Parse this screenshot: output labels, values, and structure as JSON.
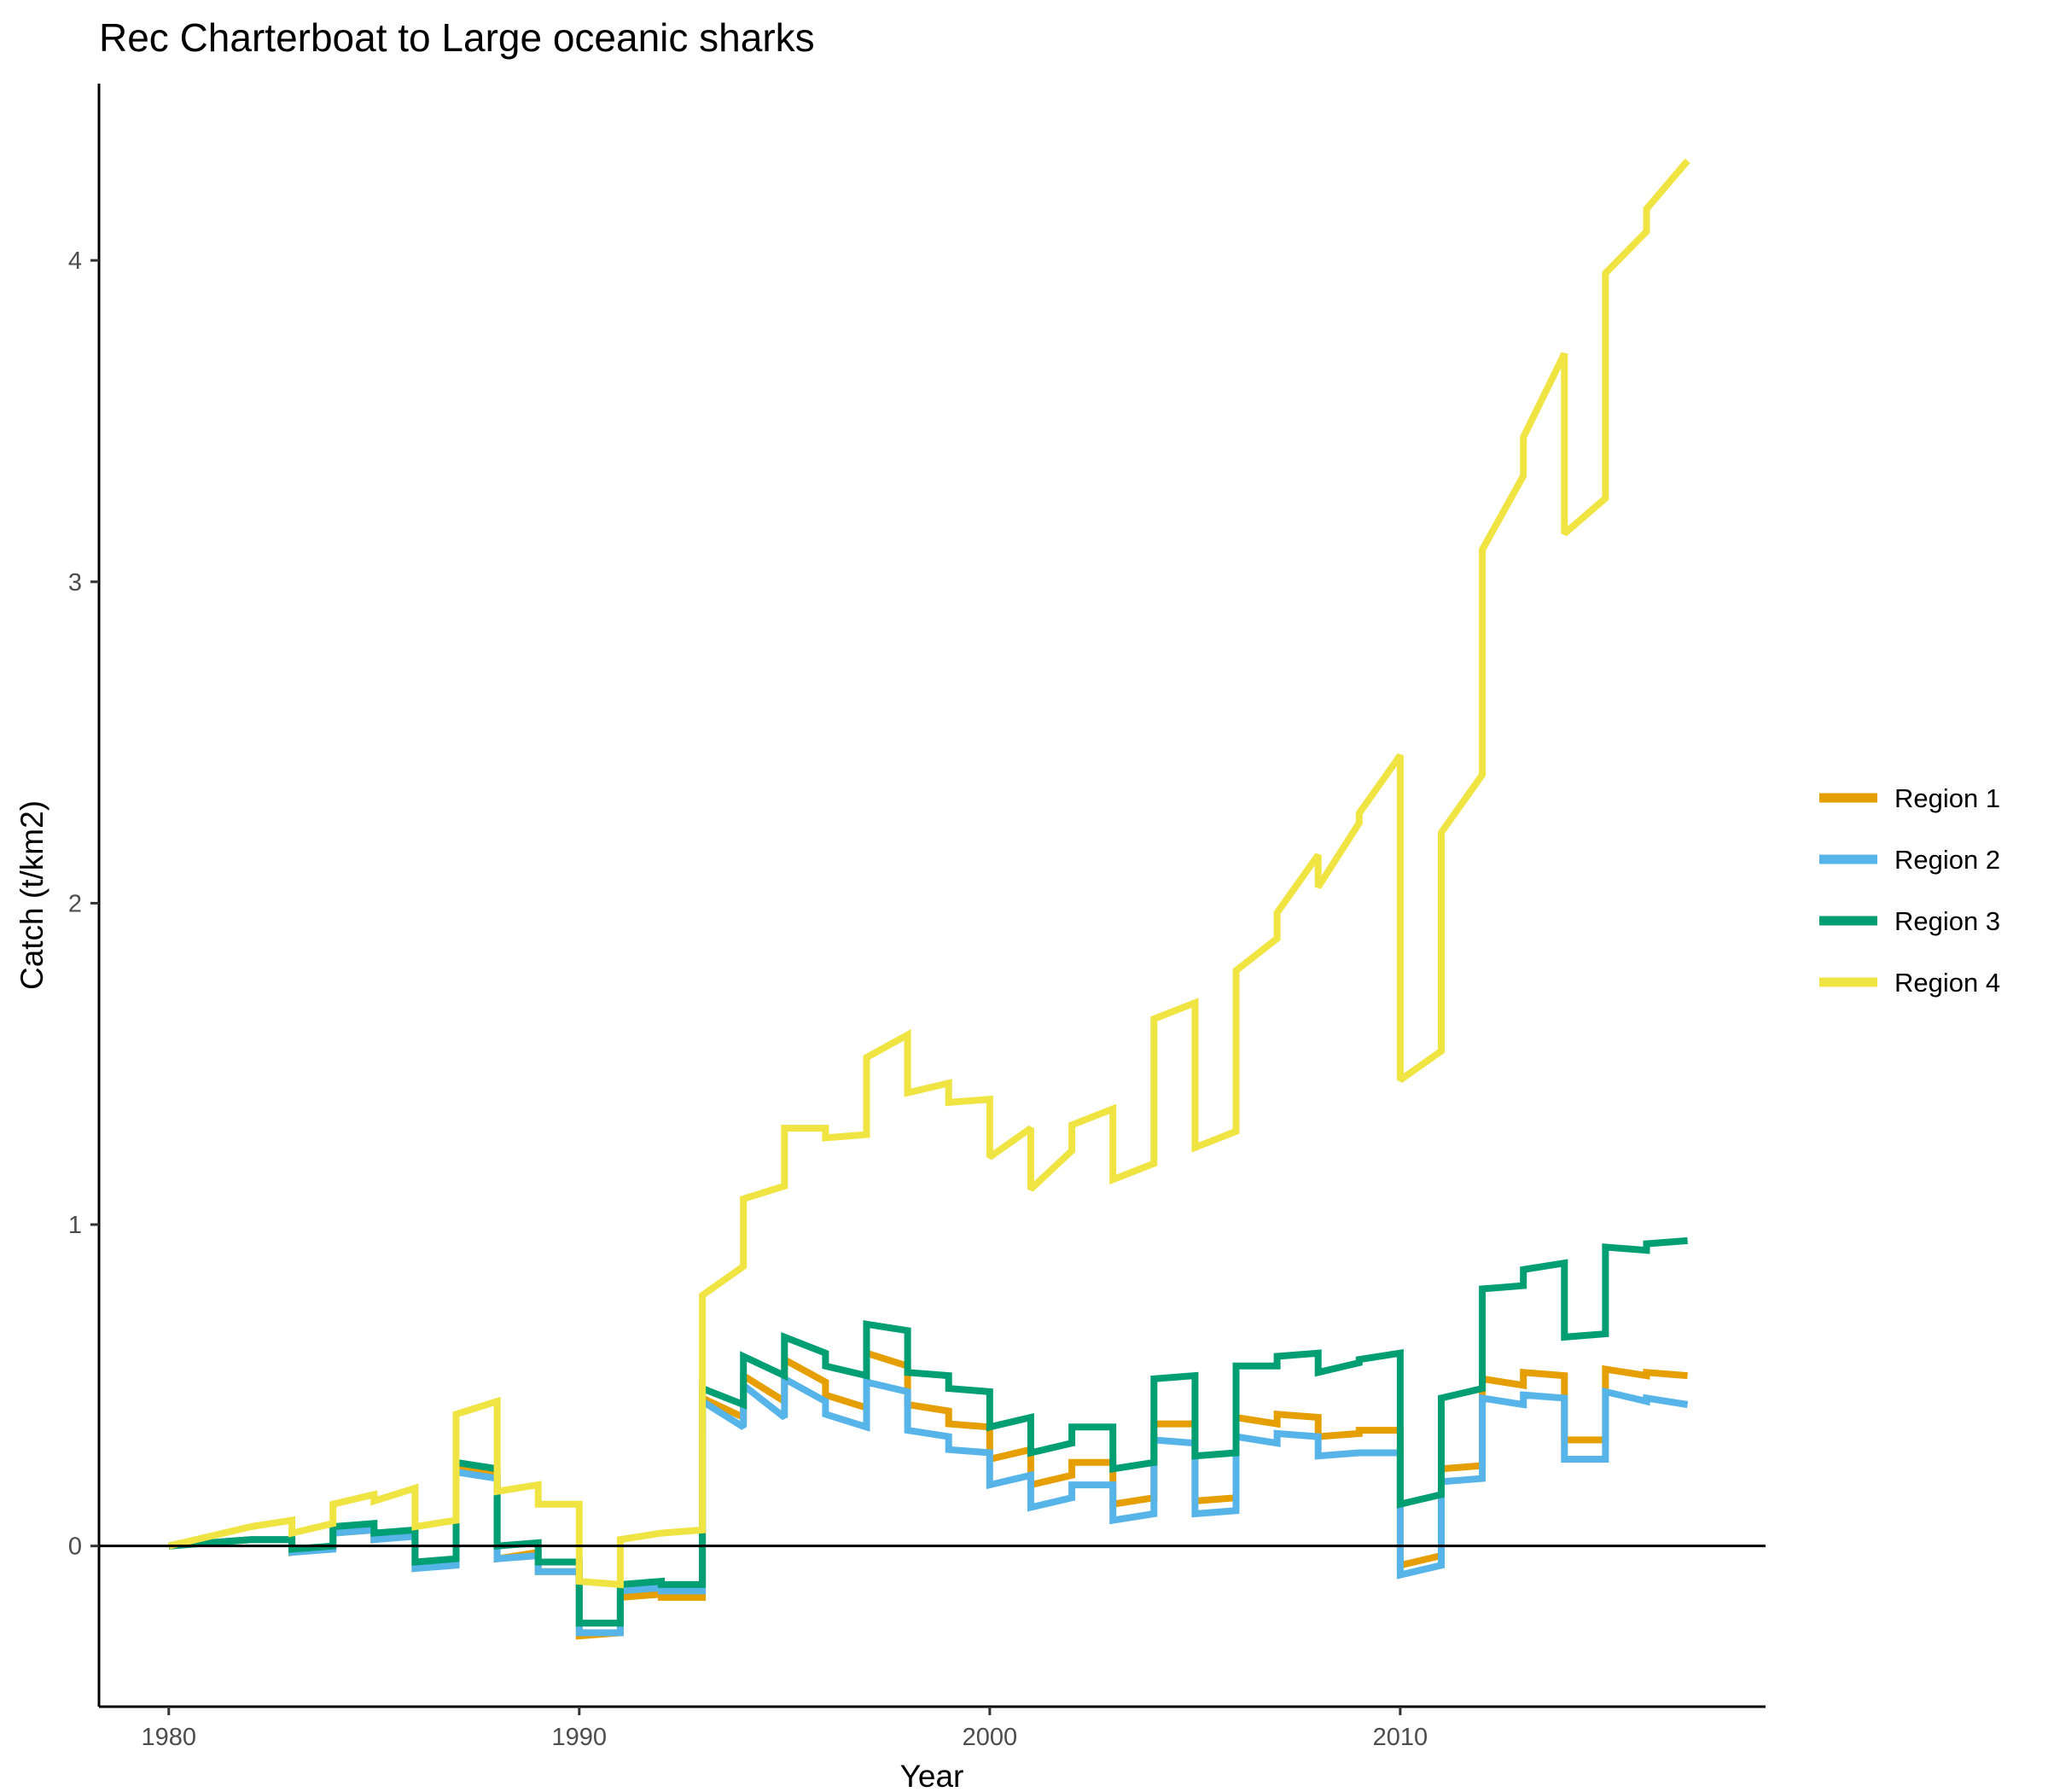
{
  "chart_data": {
    "type": "line",
    "title": "Rec Charterboat to Large oceanic sharks",
    "xlabel": "Year",
    "ylabel": "Catch (t/km2)",
    "xlim": [
      1978.3,
      2018.9
    ],
    "ylim": [
      -0.5,
      4.55
    ],
    "x_ticks": [
      1980,
      1990,
      2000,
      2010
    ],
    "y_ticks": [
      0,
      1,
      2,
      3,
      4
    ],
    "zero_line": true,
    "grid": false,
    "legend_position": "right",
    "series": [
      {
        "name": "Region 1",
        "color": "#E69F00",
        "points": [
          [
            1980,
            0
          ],
          [
            1981,
            0.01
          ],
          [
            1982,
            0.02
          ],
          [
            1983,
            0.02
          ],
          [
            1983,
            -0.02
          ],
          [
            1984,
            0
          ],
          [
            1984,
            0.04
          ],
          [
            1985,
            0.05
          ],
          [
            1985,
            0.02
          ],
          [
            1986,
            0.04
          ],
          [
            1986,
            -0.07
          ],
          [
            1987,
            -0.05
          ],
          [
            1987,
            0.24
          ],
          [
            1988,
            0.22
          ],
          [
            1988,
            -0.04
          ],
          [
            1989,
            -0.02
          ],
          [
            1989,
            -0.08
          ],
          [
            1990,
            -0.08
          ],
          [
            1990,
            -0.28
          ],
          [
            1991,
            -0.27
          ],
          [
            1991,
            -0.16
          ],
          [
            1992,
            -0.15
          ],
          [
            1992,
            -0.16
          ],
          [
            1993,
            -0.16
          ],
          [
            1993,
            0.46
          ],
          [
            1994,
            0.4
          ],
          [
            1994,
            0.53
          ],
          [
            1995,
            0.45
          ],
          [
            1995,
            0.58
          ],
          [
            1996,
            0.51
          ],
          [
            1996,
            0.47
          ],
          [
            1997,
            0.43
          ],
          [
            1997,
            0.6
          ],
          [
            1998,
            0.56
          ],
          [
            1998,
            0.44
          ],
          [
            1999,
            0.42
          ],
          [
            1999,
            0.38
          ],
          [
            2000,
            0.37
          ],
          [
            2000,
            0.27
          ],
          [
            2001,
            0.3
          ],
          [
            2001,
            0.19
          ],
          [
            2002,
            0.22
          ],
          [
            2002,
            0.26
          ],
          [
            2003,
            0.26
          ],
          [
            2003,
            0.13
          ],
          [
            2004,
            0.15
          ],
          [
            2004,
            0.38
          ],
          [
            2005,
            0.38
          ],
          [
            2005,
            0.14
          ],
          [
            2006,
            0.15
          ],
          [
            2006,
            0.4
          ],
          [
            2007,
            0.38
          ],
          [
            2007,
            0.41
          ],
          [
            2008,
            0.4
          ],
          [
            2008,
            0.34
          ],
          [
            2009,
            0.35
          ],
          [
            2009,
            0.36
          ],
          [
            2010,
            0.36
          ],
          [
            2010,
            -0.06
          ],
          [
            2011,
            -0.03
          ],
          [
            2011,
            0.24
          ],
          [
            2012,
            0.25
          ],
          [
            2012,
            0.52
          ],
          [
            2013,
            0.5
          ],
          [
            2013,
            0.54
          ],
          [
            2014,
            0.53
          ],
          [
            2014,
            0.33
          ],
          [
            2015,
            0.33
          ],
          [
            2015,
            0.55
          ],
          [
            2016,
            0.53
          ],
          [
            2016,
            0.54
          ],
          [
            2017,
            0.53
          ]
        ]
      },
      {
        "name": "Region 2",
        "color": "#56B4E9",
        "points": [
          [
            1980,
            0
          ],
          [
            1981,
            0.01
          ],
          [
            1982,
            0.02
          ],
          [
            1983,
            0.02
          ],
          [
            1983,
            -0.02
          ],
          [
            1984,
            -0.01
          ],
          [
            1984,
            0.04
          ],
          [
            1985,
            0.05
          ],
          [
            1985,
            0.02
          ],
          [
            1986,
            0.03
          ],
          [
            1986,
            -0.07
          ],
          [
            1987,
            -0.06
          ],
          [
            1987,
            0.23
          ],
          [
            1988,
            0.21
          ],
          [
            1988,
            -0.04
          ],
          [
            1989,
            -0.03
          ],
          [
            1989,
            -0.08
          ],
          [
            1990,
            -0.08
          ],
          [
            1990,
            -0.27
          ],
          [
            1991,
            -0.27
          ],
          [
            1991,
            -0.14
          ],
          [
            1992,
            -0.13
          ],
          [
            1992,
            -0.14
          ],
          [
            1993,
            -0.14
          ],
          [
            1993,
            0.45
          ],
          [
            1994,
            0.37
          ],
          [
            1994,
            0.5
          ],
          [
            1995,
            0.4
          ],
          [
            1995,
            0.52
          ],
          [
            1996,
            0.45
          ],
          [
            1996,
            0.41
          ],
          [
            1997,
            0.37
          ],
          [
            1997,
            0.51
          ],
          [
            1998,
            0.48
          ],
          [
            1998,
            0.36
          ],
          [
            1999,
            0.34
          ],
          [
            1999,
            0.3
          ],
          [
            2000,
            0.29
          ],
          [
            2000,
            0.19
          ],
          [
            2001,
            0.22
          ],
          [
            2001,
            0.12
          ],
          [
            2002,
            0.15
          ],
          [
            2002,
            0.19
          ],
          [
            2003,
            0.19
          ],
          [
            2003,
            0.08
          ],
          [
            2004,
            0.1
          ],
          [
            2004,
            0.33
          ],
          [
            2005,
            0.32
          ],
          [
            2005,
            0.1
          ],
          [
            2006,
            0.11
          ],
          [
            2006,
            0.34
          ],
          [
            2007,
            0.32
          ],
          [
            2007,
            0.35
          ],
          [
            2008,
            0.34
          ],
          [
            2008,
            0.28
          ],
          [
            2009,
            0.29
          ],
          [
            2009,
            0.29
          ],
          [
            2010,
            0.29
          ],
          [
            2010,
            -0.09
          ],
          [
            2011,
            -0.06
          ],
          [
            2011,
            0.2
          ],
          [
            2012,
            0.21
          ],
          [
            2012,
            0.46
          ],
          [
            2013,
            0.44
          ],
          [
            2013,
            0.47
          ],
          [
            2014,
            0.46
          ],
          [
            2014,
            0.27
          ],
          [
            2015,
            0.27
          ],
          [
            2015,
            0.48
          ],
          [
            2016,
            0.45
          ],
          [
            2016,
            0.46
          ],
          [
            2017,
            0.44
          ]
        ]
      },
      {
        "name": "Region 3",
        "color": "#009E73",
        "points": [
          [
            1980,
            0
          ],
          [
            1981,
            0.01
          ],
          [
            1982,
            0.02
          ],
          [
            1983,
            0.02
          ],
          [
            1983,
            -0.01
          ],
          [
            1984,
            0
          ],
          [
            1984,
            0.06
          ],
          [
            1985,
            0.07
          ],
          [
            1985,
            0.04
          ],
          [
            1986,
            0.05
          ],
          [
            1986,
            -0.05
          ],
          [
            1987,
            -0.04
          ],
          [
            1987,
            0.26
          ],
          [
            1988,
            0.24
          ],
          [
            1988,
            0
          ],
          [
            1989,
            0.01
          ],
          [
            1989,
            -0.05
          ],
          [
            1990,
            -0.05
          ],
          [
            1990,
            -0.24
          ],
          [
            1991,
            -0.24
          ],
          [
            1991,
            -0.12
          ],
          [
            1992,
            -0.11
          ],
          [
            1992,
            -0.12
          ],
          [
            1993,
            -0.12
          ],
          [
            1993,
            0.49
          ],
          [
            1994,
            0.44
          ],
          [
            1994,
            0.59
          ],
          [
            1995,
            0.53
          ],
          [
            1995,
            0.65
          ],
          [
            1996,
            0.6
          ],
          [
            1996,
            0.56
          ],
          [
            1997,
            0.53
          ],
          [
            1997,
            0.69
          ],
          [
            1998,
            0.67
          ],
          [
            1998,
            0.54
          ],
          [
            1999,
            0.53
          ],
          [
            1999,
            0.49
          ],
          [
            2000,
            0.48
          ],
          [
            2000,
            0.37
          ],
          [
            2001,
            0.4
          ],
          [
            2001,
            0.29
          ],
          [
            2002,
            0.32
          ],
          [
            2002,
            0.37
          ],
          [
            2003,
            0.37
          ],
          [
            2003,
            0.24
          ],
          [
            2004,
            0.26
          ],
          [
            2004,
            0.52
          ],
          [
            2005,
            0.53
          ],
          [
            2005,
            0.28
          ],
          [
            2006,
            0.29
          ],
          [
            2006,
            0.56
          ],
          [
            2007,
            0.56
          ],
          [
            2007,
            0.59
          ],
          [
            2008,
            0.6
          ],
          [
            2008,
            0.54
          ],
          [
            2009,
            0.57
          ],
          [
            2009,
            0.58
          ],
          [
            2010,
            0.6
          ],
          [
            2010,
            0.13
          ],
          [
            2011,
            0.16
          ],
          [
            2011,
            0.46
          ],
          [
            2012,
            0.49
          ],
          [
            2012,
            0.8
          ],
          [
            2013,
            0.81
          ],
          [
            2013,
            0.86
          ],
          [
            2014,
            0.88
          ],
          [
            2014,
            0.65
          ],
          [
            2015,
            0.66
          ],
          [
            2015,
            0.93
          ],
          [
            2016,
            0.92
          ],
          [
            2016,
            0.94
          ],
          [
            2017,
            0.95
          ]
        ]
      },
      {
        "name": "Region 4",
        "color": "#F0E442",
        "points": [
          [
            1980,
            0
          ],
          [
            1981,
            0.03
          ],
          [
            1982,
            0.06
          ],
          [
            1983,
            0.08
          ],
          [
            1983,
            0.04
          ],
          [
            1984,
            0.07
          ],
          [
            1984,
            0.13
          ],
          [
            1985,
            0.16
          ],
          [
            1985,
            0.14
          ],
          [
            1986,
            0.18
          ],
          [
            1986,
            0.06
          ],
          [
            1987,
            0.08
          ],
          [
            1987,
            0.41
          ],
          [
            1988,
            0.45
          ],
          [
            1988,
            0.17
          ],
          [
            1989,
            0.19
          ],
          [
            1989,
            0.13
          ],
          [
            1990,
            0.13
          ],
          [
            1990,
            -0.11
          ],
          [
            1991,
            -0.12
          ],
          [
            1991,
            0.02
          ],
          [
            1992,
            0.04
          ],
          [
            1992,
            0.04
          ],
          [
            1993,
            0.05
          ],
          [
            1993,
            0.78
          ],
          [
            1994,
            0.87
          ],
          [
            1994,
            1.08
          ],
          [
            1995,
            1.12
          ],
          [
            1995,
            1.3
          ],
          [
            1996,
            1.3
          ],
          [
            1996,
            1.27
          ],
          [
            1997,
            1.28
          ],
          [
            1997,
            1.52
          ],
          [
            1998,
            1.59
          ],
          [
            1998,
            1.41
          ],
          [
            1999,
            1.44
          ],
          [
            1999,
            1.38
          ],
          [
            2000,
            1.39
          ],
          [
            2000,
            1.21
          ],
          [
            2001,
            1.3
          ],
          [
            2001,
            1.11
          ],
          [
            2002,
            1.23
          ],
          [
            2002,
            1.31
          ],
          [
            2003,
            1.36
          ],
          [
            2003,
            1.14
          ],
          [
            2004,
            1.19
          ],
          [
            2004,
            1.64
          ],
          [
            2005,
            1.69
          ],
          [
            2005,
            1.24
          ],
          [
            2006,
            1.29
          ],
          [
            2006,
            1.79
          ],
          [
            2007,
            1.89
          ],
          [
            2007,
            1.97
          ],
          [
            2008,
            2.15
          ],
          [
            2008,
            2.05
          ],
          [
            2009,
            2.25
          ],
          [
            2009,
            2.28
          ],
          [
            2010,
            2.46
          ],
          [
            2010,
            1.45
          ],
          [
            2011,
            1.54
          ],
          [
            2011,
            2.22
          ],
          [
            2012,
            2.4
          ],
          [
            2012,
            3.1
          ],
          [
            2013,
            3.33
          ],
          [
            2013,
            3.45
          ],
          [
            2014,
            3.71
          ],
          [
            2014,
            3.15
          ],
          [
            2015,
            3.26
          ],
          [
            2015,
            3.96
          ],
          [
            2016,
            4.09
          ],
          [
            2016,
            4.16
          ],
          [
            2017,
            4.31
          ]
        ]
      }
    ]
  }
}
